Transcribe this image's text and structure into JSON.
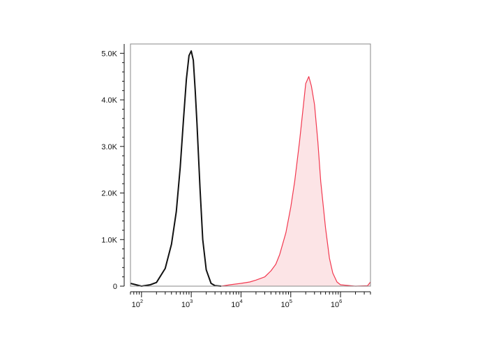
{
  "chart_data": {
    "type": "area",
    "title": "",
    "xlabel": "",
    "ylabel": "",
    "x_scale": "log10",
    "xlim": [
      60,
      4000000
    ],
    "ylim": [
      0,
      5200
    ],
    "y_ticks": [
      {
        "value": 0,
        "label": "0"
      },
      {
        "value": 1000,
        "label": "1.0K"
      },
      {
        "value": 2000,
        "label": "2.0K"
      },
      {
        "value": 3000,
        "label": "3.0K"
      },
      {
        "value": 4000,
        "label": "4.0K"
      },
      {
        "value": 5000,
        "label": "5.0K"
      }
    ],
    "x_ticks": [
      {
        "value": 100,
        "base": "10",
        "exp": "2"
      },
      {
        "value": 1000,
        "base": "10",
        "exp": "3"
      },
      {
        "value": 10000,
        "base": "10",
        "exp": "4"
      },
      {
        "value": 100000,
        "base": "10",
        "exp": "5"
      },
      {
        "value": 1000000,
        "base": "10",
        "exp": "6"
      }
    ],
    "series": [
      {
        "color": "#111111",
        "fill": "none",
        "x": [
          60,
          100,
          150,
          200,
          300,
          400,
          500,
          600,
          700,
          800,
          900,
          1000,
          1100,
          1200,
          1300,
          1500,
          1700,
          2000,
          2500,
          3000,
          4000
        ],
        "y": [
          60,
          0,
          30,
          80,
          380,
          900,
          1600,
          2550,
          3600,
          4450,
          4950,
          5050,
          4850,
          4200,
          3500,
          2100,
          1000,
          350,
          60,
          10,
          0
        ]
      },
      {
        "color": "#f2384f",
        "fill": "#fce4e6",
        "x": [
          4000,
          6000,
          10000,
          15000,
          20000,
          30000,
          40000,
          50000,
          60000,
          80000,
          100000,
          120000,
          150000,
          180000,
          200000,
          230000,
          260000,
          300000,
          350000,
          400000,
          500000,
          600000,
          700000,
          850000,
          1000000,
          2000000,
          3500000,
          4000000
        ],
        "y": [
          0,
          30,
          60,
          90,
          130,
          200,
          330,
          470,
          680,
          1150,
          1700,
          2250,
          3100,
          3900,
          4350,
          4500,
          4300,
          3900,
          3100,
          2250,
          1250,
          600,
          280,
          90,
          30,
          0,
          10,
          90
        ]
      }
    ]
  }
}
